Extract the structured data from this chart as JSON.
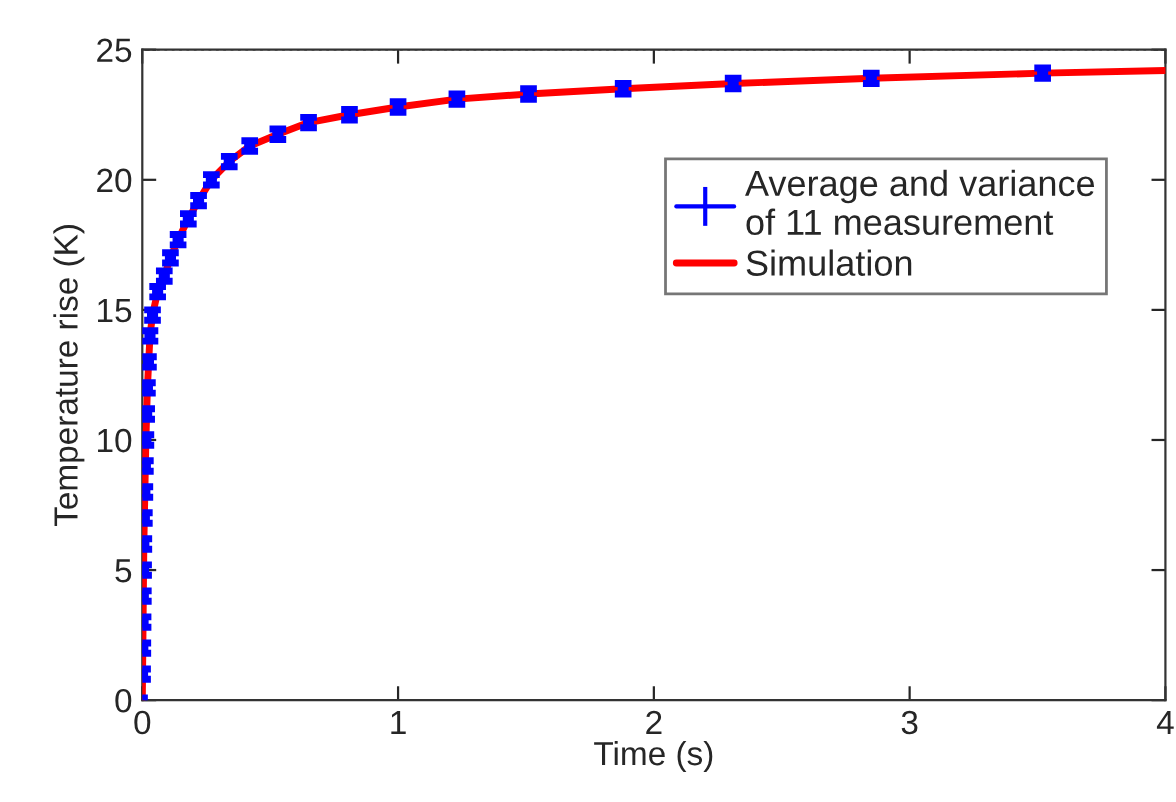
{
  "chart_data": {
    "type": "line",
    "xlabel": "Time (s)",
    "ylabel": "Temperature rise (K)",
    "xlim": [
      0,
      4
    ],
    "ylim": [
      0,
      25
    ],
    "xticks": [
      0,
      1,
      2,
      3,
      4
    ],
    "yticks": [
      0,
      5,
      10,
      15,
      20,
      25
    ],
    "grid": false,
    "legend": "top right",
    "ref_lines": [
      {
        "axis": "y",
        "value": 25,
        "color": "#999999",
        "line_style": "dotted"
      }
    ],
    "series": [
      {
        "name": "Average and variance\nof 11 measurement",
        "type": "scatter",
        "color": "#0000ff",
        "marker": "square",
        "x": [
          0.0,
          0.001,
          0.002,
          0.003,
          0.004,
          0.005,
          0.006,
          0.008,
          0.01,
          0.012,
          0.014,
          0.017,
          0.02,
          0.024,
          0.03,
          0.04,
          0.06,
          0.086,
          0.11,
          0.14,
          0.18,
          0.22,
          0.27,
          0.34,
          0.42,
          0.53,
          0.65,
          0.81,
          1.0,
          1.23,
          1.51,
          1.88,
          2.31,
          2.85,
          3.52
        ],
        "values": [
          0.0,
          1.0,
          2.0,
          3.0,
          4.0,
          5.0,
          6.0,
          7.0,
          8.0,
          9.0,
          10.0,
          11.0,
          12.0,
          13.0,
          14.0,
          14.8,
          15.7,
          16.3,
          17.0,
          17.7,
          18.5,
          19.2,
          20.0,
          20.7,
          21.3,
          21.75,
          22.2,
          22.5,
          22.8,
          23.1,
          23.3,
          23.5,
          23.7,
          23.9,
          24.1
        ],
        "errors": [
          null,
          0.2,
          0.2,
          0.2,
          0.2,
          0.2,
          0.2,
          0.2,
          0.2,
          0.2,
          0.2,
          0.2,
          0.2,
          0.2,
          0.2,
          0.2,
          0.2,
          0.2,
          0.2,
          0.2,
          0.2,
          0.2,
          0.2,
          0.2,
          0.2,
          0.2,
          0.2,
          0.2,
          0.2,
          0.2,
          0.2,
          0.2,
          0.2,
          0.2,
          0.2
        ]
      },
      {
        "name": "Simulation",
        "color": "#ff0000",
        "line_style": "solid",
        "x": [
          0.0,
          0.002,
          0.004,
          0.006,
          0.01,
          0.014,
          0.02,
          0.03,
          0.04,
          0.06,
          0.086,
          0.11,
          0.14,
          0.18,
          0.22,
          0.27,
          0.34,
          0.42,
          0.53,
          0.65,
          0.81,
          1.0,
          1.23,
          1.51,
          1.88,
          2.31,
          2.85,
          3.52,
          4.0
        ],
        "values": [
          0.0,
          2.0,
          4.0,
          6.0,
          8.0,
          10.0,
          12.0,
          14.0,
          14.8,
          15.7,
          16.3,
          17.0,
          17.7,
          18.5,
          19.2,
          20.0,
          20.7,
          21.3,
          21.75,
          22.2,
          22.5,
          22.8,
          23.1,
          23.3,
          23.5,
          23.7,
          23.9,
          24.1,
          24.2
        ]
      }
    ]
  }
}
